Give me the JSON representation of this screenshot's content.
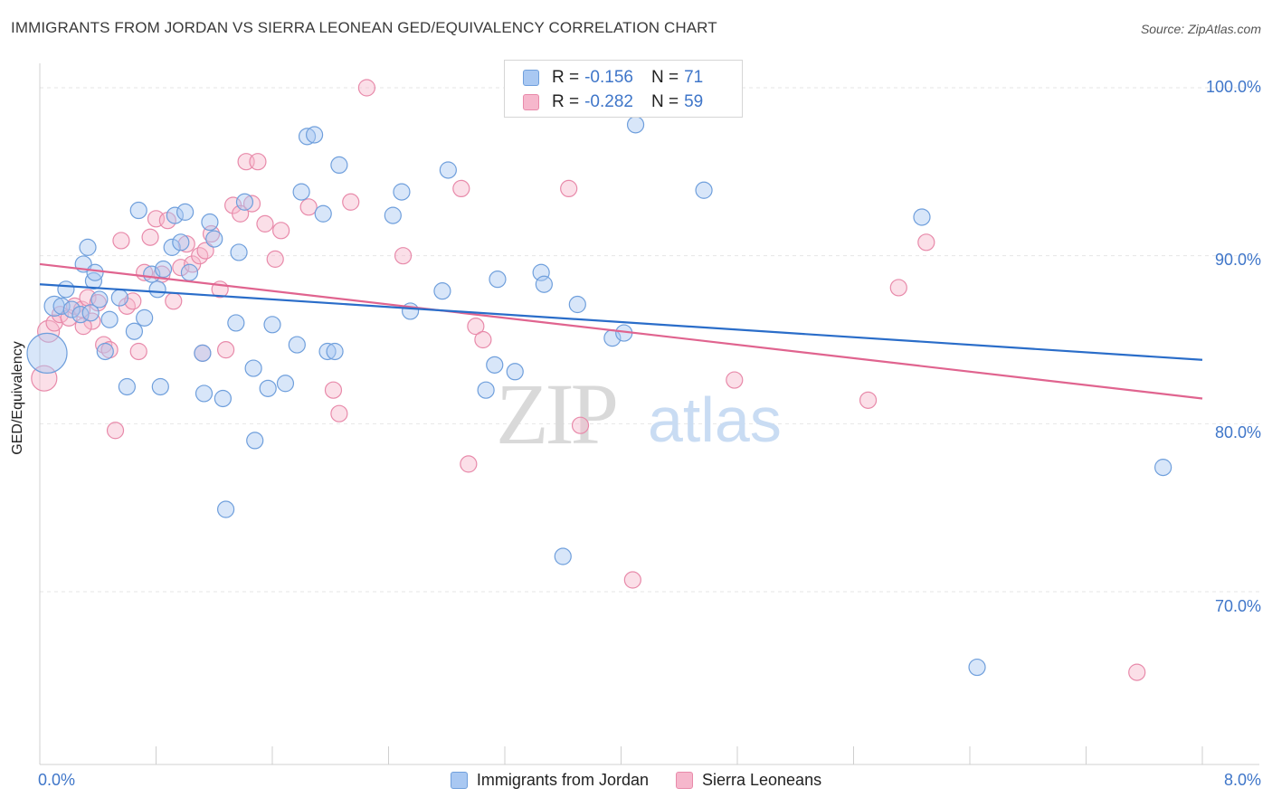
{
  "header": {
    "title": "IMMIGRANTS FROM JORDAN VS SIERRA LEONEAN GED/EQUIVALENCY CORRELATION CHART",
    "source": "Source: ZipAtlas.com"
  },
  "watermark": {
    "zip": "ZIP",
    "atlas": "atlas"
  },
  "legend": {
    "rows": [
      {
        "r_label": "R = ",
        "r_value": "-0.156",
        "n_label": "N = ",
        "n_value": "71"
      },
      {
        "r_label": "R = ",
        "r_value": "-0.282",
        "n_label": "N = ",
        "n_value": "59"
      }
    ]
  },
  "chart_data": {
    "type": "scatter",
    "ylabel": "GED/Equivalency",
    "xlim": [
      0.0,
      8.0
    ],
    "ylim": [
      61.5,
      102.5
    ],
    "y_ticks": [
      {
        "value": 100,
        "label": "100.0%"
      },
      {
        "value": 90,
        "label": "90.0%"
      },
      {
        "value": 80,
        "label": "80.0%"
      },
      {
        "value": 70,
        "label": "70.0%"
      }
    ],
    "x_tick_labels": {
      "left": "0.0%",
      "right": "8.0%"
    },
    "grid": true,
    "legend_position": "top-center",
    "colors": {
      "blue_fill": "#a9c8f2",
      "blue_stroke": "#6f9fdc",
      "blue_line": "#2a6dc9",
      "pink_fill": "#f6b7cc",
      "pink_stroke": "#e88aaa",
      "pink_line": "#e0648f",
      "axis_text": "#3f76c9"
    },
    "series": [
      {
        "name": "Immigrants from Jordan",
        "trend": {
          "x0": 0.0,
          "y0": 88.3,
          "x1": 8.0,
          "y1": 83.8
        },
        "points": [
          {
            "x": 0.05,
            "y": 84.2,
            "s": 22
          },
          {
            "x": 0.1,
            "y": 87.0,
            "s": 11
          },
          {
            "x": 0.15,
            "y": 87.0,
            "s": 9
          },
          {
            "x": 0.18,
            "y": 88.0,
            "s": 9
          },
          {
            "x": 0.22,
            "y": 86.8,
            "s": 9
          },
          {
            "x": 0.28,
            "y": 86.5,
            "s": 9
          },
          {
            "x": 0.3,
            "y": 89.5,
            "s": 9
          },
          {
            "x": 0.33,
            "y": 90.5,
            "s": 9
          },
          {
            "x": 0.37,
            "y": 88.5,
            "s": 9
          },
          {
            "x": 0.38,
            "y": 89.0,
            "s": 9
          },
          {
            "x": 0.41,
            "y": 87.4,
            "s": 9
          },
          {
            "x": 0.45,
            "y": 84.3,
            "s": 9
          },
          {
            "x": 0.48,
            "y": 86.2,
            "s": 9
          },
          {
            "x": 0.6,
            "y": 82.2,
            "s": 9
          },
          {
            "x": 0.55,
            "y": 87.5,
            "s": 9
          },
          {
            "x": 0.65,
            "y": 85.5,
            "s": 9
          },
          {
            "x": 0.68,
            "y": 92.7,
            "s": 9
          },
          {
            "x": 0.72,
            "y": 86.3,
            "s": 9
          },
          {
            "x": 0.77,
            "y": 88.9,
            "s": 9
          },
          {
            "x": 0.81,
            "y": 88.0,
            "s": 9
          },
          {
            "x": 0.83,
            "y": 82.2,
            "s": 9
          },
          {
            "x": 0.85,
            "y": 89.2,
            "s": 9
          },
          {
            "x": 0.91,
            "y": 90.5,
            "s": 9
          },
          {
            "x": 0.93,
            "y": 92.4,
            "s": 9
          },
          {
            "x": 0.97,
            "y": 90.8,
            "s": 9
          },
          {
            "x": 1.0,
            "y": 92.6,
            "s": 9
          },
          {
            "x": 1.03,
            "y": 89.0,
            "s": 9
          },
          {
            "x": 1.12,
            "y": 84.2,
            "s": 9
          },
          {
            "x": 1.13,
            "y": 81.8,
            "s": 9
          },
          {
            "x": 1.17,
            "y": 92.0,
            "s": 9
          },
          {
            "x": 1.2,
            "y": 91.0,
            "s": 9
          },
          {
            "x": 1.26,
            "y": 81.5,
            "s": 9
          },
          {
            "x": 1.35,
            "y": 86.0,
            "s": 9
          },
          {
            "x": 1.37,
            "y": 90.2,
            "s": 9
          },
          {
            "x": 1.41,
            "y": 93.2,
            "s": 9
          },
          {
            "x": 1.47,
            "y": 83.3,
            "s": 9
          },
          {
            "x": 1.48,
            "y": 79.0,
            "s": 9
          },
          {
            "x": 1.28,
            "y": 74.9,
            "s": 9
          },
          {
            "x": 1.57,
            "y": 82.1,
            "s": 9
          },
          {
            "x": 1.6,
            "y": 85.9,
            "s": 9
          },
          {
            "x": 1.69,
            "y": 82.4,
            "s": 9
          },
          {
            "x": 1.77,
            "y": 84.7,
            "s": 9
          },
          {
            "x": 1.8,
            "y": 93.8,
            "s": 9
          },
          {
            "x": 1.84,
            "y": 97.1,
            "s": 9
          },
          {
            "x": 1.89,
            "y": 97.2,
            "s": 9
          },
          {
            "x": 1.95,
            "y": 92.5,
            "s": 9
          },
          {
            "x": 1.98,
            "y": 84.3,
            "s": 9
          },
          {
            "x": 2.03,
            "y": 84.3,
            "s": 9
          },
          {
            "x": 2.06,
            "y": 95.4,
            "s": 9
          },
          {
            "x": 2.43,
            "y": 92.4,
            "s": 9
          },
          {
            "x": 2.49,
            "y": 93.8,
            "s": 9
          },
          {
            "x": 2.55,
            "y": 86.7,
            "s": 9
          },
          {
            "x": 2.77,
            "y": 87.9,
            "s": 9
          },
          {
            "x": 2.81,
            "y": 95.1,
            "s": 9
          },
          {
            "x": 3.07,
            "y": 82.0,
            "s": 9
          },
          {
            "x": 3.13,
            "y": 83.5,
            "s": 9
          },
          {
            "x": 3.15,
            "y": 88.6,
            "s": 9
          },
          {
            "x": 3.27,
            "y": 83.1,
            "s": 9
          },
          {
            "x": 3.45,
            "y": 89.0,
            "s": 9
          },
          {
            "x": 3.47,
            "y": 88.3,
            "s": 9
          },
          {
            "x": 3.6,
            "y": 72.1,
            "s": 9
          },
          {
            "x": 3.7,
            "y": 87.1,
            "s": 9
          },
          {
            "x": 3.94,
            "y": 85.1,
            "s": 9
          },
          {
            "x": 4.02,
            "y": 85.4,
            "s": 9
          },
          {
            "x": 4.1,
            "y": 97.8,
            "s": 9
          },
          {
            "x": 4.57,
            "y": 93.9,
            "s": 9
          },
          {
            "x": 6.07,
            "y": 92.3,
            "s": 9
          },
          {
            "x": 6.45,
            "y": 65.5,
            "s": 9
          },
          {
            "x": 7.73,
            "y": 77.4,
            "s": 9
          },
          {
            "x": 3.55,
            "y": 100.1,
            "s": 9
          },
          {
            "x": 0.35,
            "y": 86.6,
            "s": 9
          }
        ]
      },
      {
        "name": "Sierra Leoneans",
        "trend": {
          "x0": 0.0,
          "y0": 89.5,
          "x1": 8.0,
          "y1": 81.5
        },
        "points": [
          {
            "x": 0.03,
            "y": 82.7,
            "s": 14
          },
          {
            "x": 0.06,
            "y": 85.5,
            "s": 12
          },
          {
            "x": 0.1,
            "y": 86.0,
            "s": 9
          },
          {
            "x": 0.14,
            "y": 86.5,
            "s": 9
          },
          {
            "x": 0.2,
            "y": 86.3,
            "s": 9
          },
          {
            "x": 0.24,
            "y": 87.0,
            "s": 9
          },
          {
            "x": 0.29,
            "y": 86.8,
            "s": 9
          },
          {
            "x": 0.33,
            "y": 87.5,
            "s": 9
          },
          {
            "x": 0.36,
            "y": 86.1,
            "s": 9
          },
          {
            "x": 0.4,
            "y": 87.2,
            "s": 9
          },
          {
            "x": 0.44,
            "y": 84.7,
            "s": 9
          },
          {
            "x": 0.48,
            "y": 84.4,
            "s": 9
          },
          {
            "x": 0.52,
            "y": 79.6,
            "s": 9
          },
          {
            "x": 0.56,
            "y": 90.9,
            "s": 9
          },
          {
            "x": 0.6,
            "y": 87.0,
            "s": 9
          },
          {
            "x": 0.64,
            "y": 87.3,
            "s": 9
          },
          {
            "x": 0.68,
            "y": 84.3,
            "s": 9
          },
          {
            "x": 0.72,
            "y": 89.0,
            "s": 9
          },
          {
            "x": 0.76,
            "y": 91.1,
            "s": 9
          },
          {
            "x": 0.8,
            "y": 92.2,
            "s": 9
          },
          {
            "x": 0.84,
            "y": 88.9,
            "s": 9
          },
          {
            "x": 0.88,
            "y": 92.1,
            "s": 9
          },
          {
            "x": 0.92,
            "y": 87.3,
            "s": 9
          },
          {
            "x": 0.97,
            "y": 89.3,
            "s": 9
          },
          {
            "x": 1.01,
            "y": 90.7,
            "s": 9
          },
          {
            "x": 1.05,
            "y": 89.5,
            "s": 9
          },
          {
            "x": 1.1,
            "y": 90.0,
            "s": 9
          },
          {
            "x": 1.14,
            "y": 90.3,
            "s": 9
          },
          {
            "x": 1.18,
            "y": 91.3,
            "s": 9
          },
          {
            "x": 1.24,
            "y": 88.0,
            "s": 9
          },
          {
            "x": 1.28,
            "y": 84.4,
            "s": 9
          },
          {
            "x": 1.33,
            "y": 93.0,
            "s": 9
          },
          {
            "x": 1.38,
            "y": 92.5,
            "s": 9
          },
          {
            "x": 1.42,
            "y": 95.6,
            "s": 9
          },
          {
            "x": 1.46,
            "y": 93.1,
            "s": 9
          },
          {
            "x": 1.5,
            "y": 95.6,
            "s": 9
          },
          {
            "x": 1.55,
            "y": 91.9,
            "s": 9
          },
          {
            "x": 1.62,
            "y": 89.8,
            "s": 9
          },
          {
            "x": 1.66,
            "y": 91.5,
            "s": 9
          },
          {
            "x": 1.85,
            "y": 92.9,
            "s": 9
          },
          {
            "x": 2.02,
            "y": 82.0,
            "s": 9
          },
          {
            "x": 2.06,
            "y": 80.6,
            "s": 9
          },
          {
            "x": 2.14,
            "y": 93.2,
            "s": 9
          },
          {
            "x": 2.25,
            "y": 100.0,
            "s": 9
          },
          {
            "x": 2.5,
            "y": 90.0,
            "s": 9
          },
          {
            "x": 2.9,
            "y": 94.0,
            "s": 9
          },
          {
            "x": 2.95,
            "y": 77.6,
            "s": 9
          },
          {
            "x": 3.0,
            "y": 85.8,
            "s": 9
          },
          {
            "x": 3.05,
            "y": 85.0,
            "s": 9
          },
          {
            "x": 3.64,
            "y": 94.0,
            "s": 9
          },
          {
            "x": 3.72,
            "y": 79.9,
            "s": 9
          },
          {
            "x": 4.08,
            "y": 70.7,
            "s": 9
          },
          {
            "x": 4.78,
            "y": 82.6,
            "s": 9
          },
          {
            "x": 5.7,
            "y": 81.4,
            "s": 9
          },
          {
            "x": 5.91,
            "y": 88.1,
            "s": 9
          },
          {
            "x": 6.1,
            "y": 90.8,
            "s": 9
          },
          {
            "x": 7.55,
            "y": 65.2,
            "s": 9
          },
          {
            "x": 1.12,
            "y": 84.2,
            "s": 9
          },
          {
            "x": 0.3,
            "y": 85.8,
            "s": 9
          }
        ]
      }
    ]
  }
}
